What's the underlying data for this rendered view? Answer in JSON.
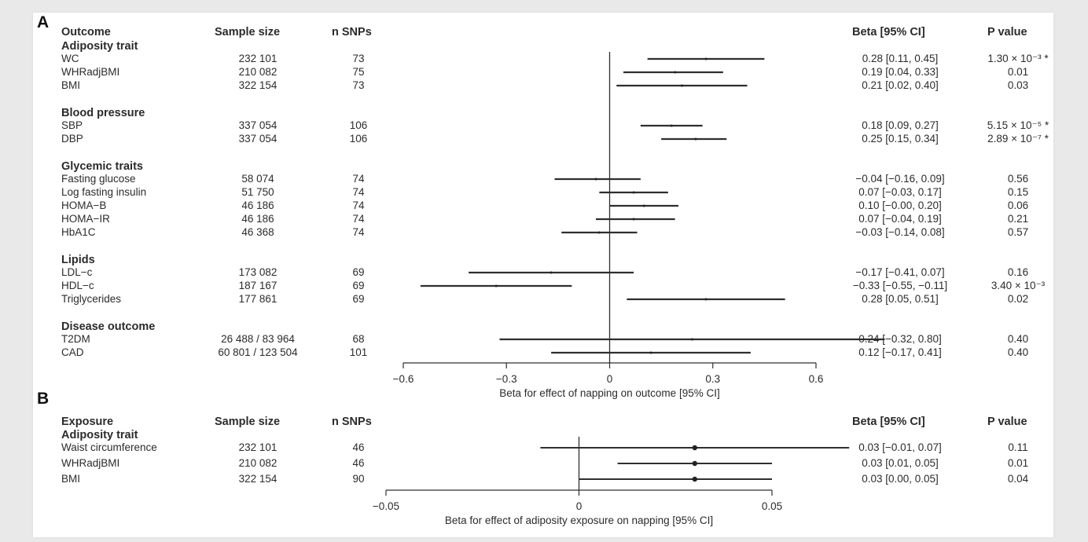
{
  "panelA": {
    "label": "A",
    "headers": {
      "outcome": "Outcome",
      "sample_size": "Sample size",
      "n_snps": "n SNPs",
      "beta": "Beta [95% CI]",
      "p": "P value"
    },
    "groups": [
      {
        "name": "Adiposity trait",
        "rows": [
          {
            "label": "WC",
            "n": "232 101",
            "snps": "73",
            "beta": 0.28,
            "lo": 0.11,
            "hi": 0.45,
            "ci_text": "0.28 [0.11, 0.45]",
            "p": "1.30 × 10⁻³ *"
          },
          {
            "label": "WHRadjBMI",
            "n": "210 082",
            "snps": "75",
            "beta": 0.19,
            "lo": 0.04,
            "hi": 0.33,
            "ci_text": "0.19 [0.04, 0.33]",
            "p": "0.01"
          },
          {
            "label": "BMI",
            "n": "322 154",
            "snps": "73",
            "beta": 0.21,
            "lo": 0.02,
            "hi": 0.4,
            "ci_text": "0.21 [0.02, 0.40]",
            "p": "0.03"
          }
        ]
      },
      {
        "name": "Blood pressure",
        "rows": [
          {
            "label": "SBP",
            "n": "337 054",
            "snps": "106",
            "beta": 0.18,
            "lo": 0.09,
            "hi": 0.27,
            "ci_text": "0.18 [0.09, 0.27]",
            "p": "5.15 × 10⁻⁵ *"
          },
          {
            "label": "DBP",
            "n": "337 054",
            "snps": "106",
            "beta": 0.25,
            "lo": 0.15,
            "hi": 0.34,
            "ci_text": "0.25 [0.15, 0.34]",
            "p": "2.89 × 10⁻⁷ *"
          }
        ]
      },
      {
        "name": "Glycemic traits",
        "rows": [
          {
            "label": "Fasting glucose",
            "n": "58 074",
            "snps": "74",
            "beta": -0.04,
            "lo": -0.16,
            "hi": 0.09,
            "ci_text": "−0.04 [−0.16, 0.09]",
            "p": "0.56"
          },
          {
            "label": "Log fasting insulin",
            "n": "51 750",
            "snps": "74",
            "beta": 0.07,
            "lo": -0.03,
            "hi": 0.17,
            "ci_text": "0.07 [−0.03, 0.17]",
            "p": "0.15"
          },
          {
            "label": "HOMA−B",
            "n": "46 186",
            "snps": "74",
            "beta": 0.1,
            "lo": -0.0,
            "hi": 0.2,
            "ci_text": "0.10 [−0.00, 0.20]",
            "p": "0.06"
          },
          {
            "label": "HOMA−IR",
            "n": "46 186",
            "snps": "74",
            "beta": 0.07,
            "lo": -0.04,
            "hi": 0.19,
            "ci_text": "0.07 [−0.04, 0.19]",
            "p": "0.21"
          },
          {
            "label": "HbA1C",
            "n": "46 368",
            "snps": "74",
            "beta": -0.03,
            "lo": -0.14,
            "hi": 0.08,
            "ci_text": "−0.03 [−0.14, 0.08]",
            "p": "0.57"
          }
        ]
      },
      {
        "name": "Lipids",
        "rows": [
          {
            "label": "LDL−c",
            "n": "173 082",
            "snps": "69",
            "beta": -0.17,
            "lo": -0.41,
            "hi": 0.07,
            "ci_text": "−0.17 [−0.41, 0.07]",
            "p": "0.16"
          },
          {
            "label": "HDL−c",
            "n": "187 167",
            "snps": "69",
            "beta": -0.33,
            "lo": -0.55,
            "hi": -0.11,
            "ci_text": "−0.33 [−0.55, −0.11]",
            "p": "3.40 × 10⁻³"
          },
          {
            "label": "Triglycerides",
            "n": "177 861",
            "snps": "69",
            "beta": 0.28,
            "lo": 0.05,
            "hi": 0.51,
            "ci_text": "0.28 [0.05, 0.51]",
            "p": "0.02"
          }
        ]
      },
      {
        "name": "Disease outcome",
        "rows": [
          {
            "label": "T2DM",
            "n": "26 488 / 83 964",
            "snps": "68",
            "beta": 0.24,
            "lo": -0.32,
            "hi": 0.8,
            "ci_text": "0.24 [−0.32, 0.80]",
            "p": "0.40"
          },
          {
            "label": "CAD",
            "n": "60 801 / 123 504",
            "snps": "101",
            "beta": 0.12,
            "lo": -0.17,
            "hi": 0.41,
            "ci_text": "0.12 [−0.17, 0.41]",
            "p": "0.40"
          }
        ]
      }
    ],
    "axis": {
      "min": -0.6,
      "max": 0.6,
      "ticks": [
        -0.6,
        -0.3,
        0,
        0.3,
        0.6
      ],
      "tick_labels": [
        "−0.6",
        "−0.3",
        "0",
        "0.3",
        "0.6"
      ],
      "label": "Beta for effect of napping on outcome [95% CI]"
    }
  },
  "panelB": {
    "label": "B",
    "headers": {
      "outcome": "Exposure",
      "sample_size": "Sample size",
      "n_snps": "n SNPs",
      "beta": "Beta [95% CI]",
      "p": "P value"
    },
    "groups": [
      {
        "name": "Adiposity trait",
        "rows": [
          {
            "label": "Waist circumference",
            "n": "232 101",
            "snps": "46",
            "beta": 0.03,
            "lo": -0.01,
            "hi": 0.07,
            "ci_text": "0.03 [−0.01, 0.07]",
            "p": "0.11"
          },
          {
            "label": "WHRadjBMI",
            "n": "210 082",
            "snps": "46",
            "beta": 0.03,
            "lo": 0.01,
            "hi": 0.05,
            "ci_text": "0.03 [0.01, 0.05]",
            "p": "0.01"
          },
          {
            "label": "BMI",
            "n": "322 154",
            "snps": "90",
            "beta": 0.03,
            "lo": 0.0,
            "hi": 0.05,
            "ci_text": "0.03 [0.00, 0.05]",
            "p": "0.04"
          }
        ]
      }
    ],
    "axis": {
      "min": -0.05,
      "max": 0.05,
      "ticks": [
        -0.05,
        0,
        0.05
      ],
      "tick_labels": [
        "−0.05",
        "0",
        "0.05"
      ],
      "label": "Beta for effect of adiposity exposure on napping [95% CI]"
    }
  },
  "chart_data": [
    {
      "type": "forest",
      "xlabel": "Beta for effect of napping on outcome [95% CI]",
      "xlim": [
        -0.6,
        0.6
      ],
      "categories": [
        "WC",
        "WHRadjBMI",
        "BMI",
        "SBP",
        "DBP",
        "Fasting glucose",
        "Log fasting insulin",
        "HOMA−B",
        "HOMA−IR",
        "HbA1C",
        "LDL−c",
        "HDL−c",
        "Triglycerides",
        "T2DM",
        "CAD"
      ],
      "values": [
        0.28,
        0.19,
        0.21,
        0.18,
        0.25,
        -0.04,
        0.07,
        0.1,
        0.07,
        -0.03,
        -0.17,
        -0.33,
        0.28,
        0.24,
        0.12
      ],
      "lower": [
        0.11,
        0.04,
        0.02,
        0.09,
        0.15,
        -0.16,
        -0.03,
        -0.0,
        -0.04,
        -0.14,
        -0.41,
        -0.55,
        0.05,
        -0.32,
        -0.17
      ],
      "upper": [
        0.45,
        0.33,
        0.4,
        0.27,
        0.34,
        0.09,
        0.17,
        0.2,
        0.19,
        0.08,
        0.07,
        -0.11,
        0.51,
        0.8,
        0.41
      ]
    },
    {
      "type": "forest",
      "xlabel": "Beta for effect of adiposity exposure on napping [95% CI]",
      "xlim": [
        -0.05,
        0.05
      ],
      "categories": [
        "Waist circumference",
        "WHRadjBMI",
        "BMI"
      ],
      "values": [
        0.03,
        0.03,
        0.03
      ],
      "lower": [
        -0.01,
        0.01,
        0.0
      ],
      "upper": [
        0.07,
        0.05,
        0.05
      ]
    }
  ]
}
